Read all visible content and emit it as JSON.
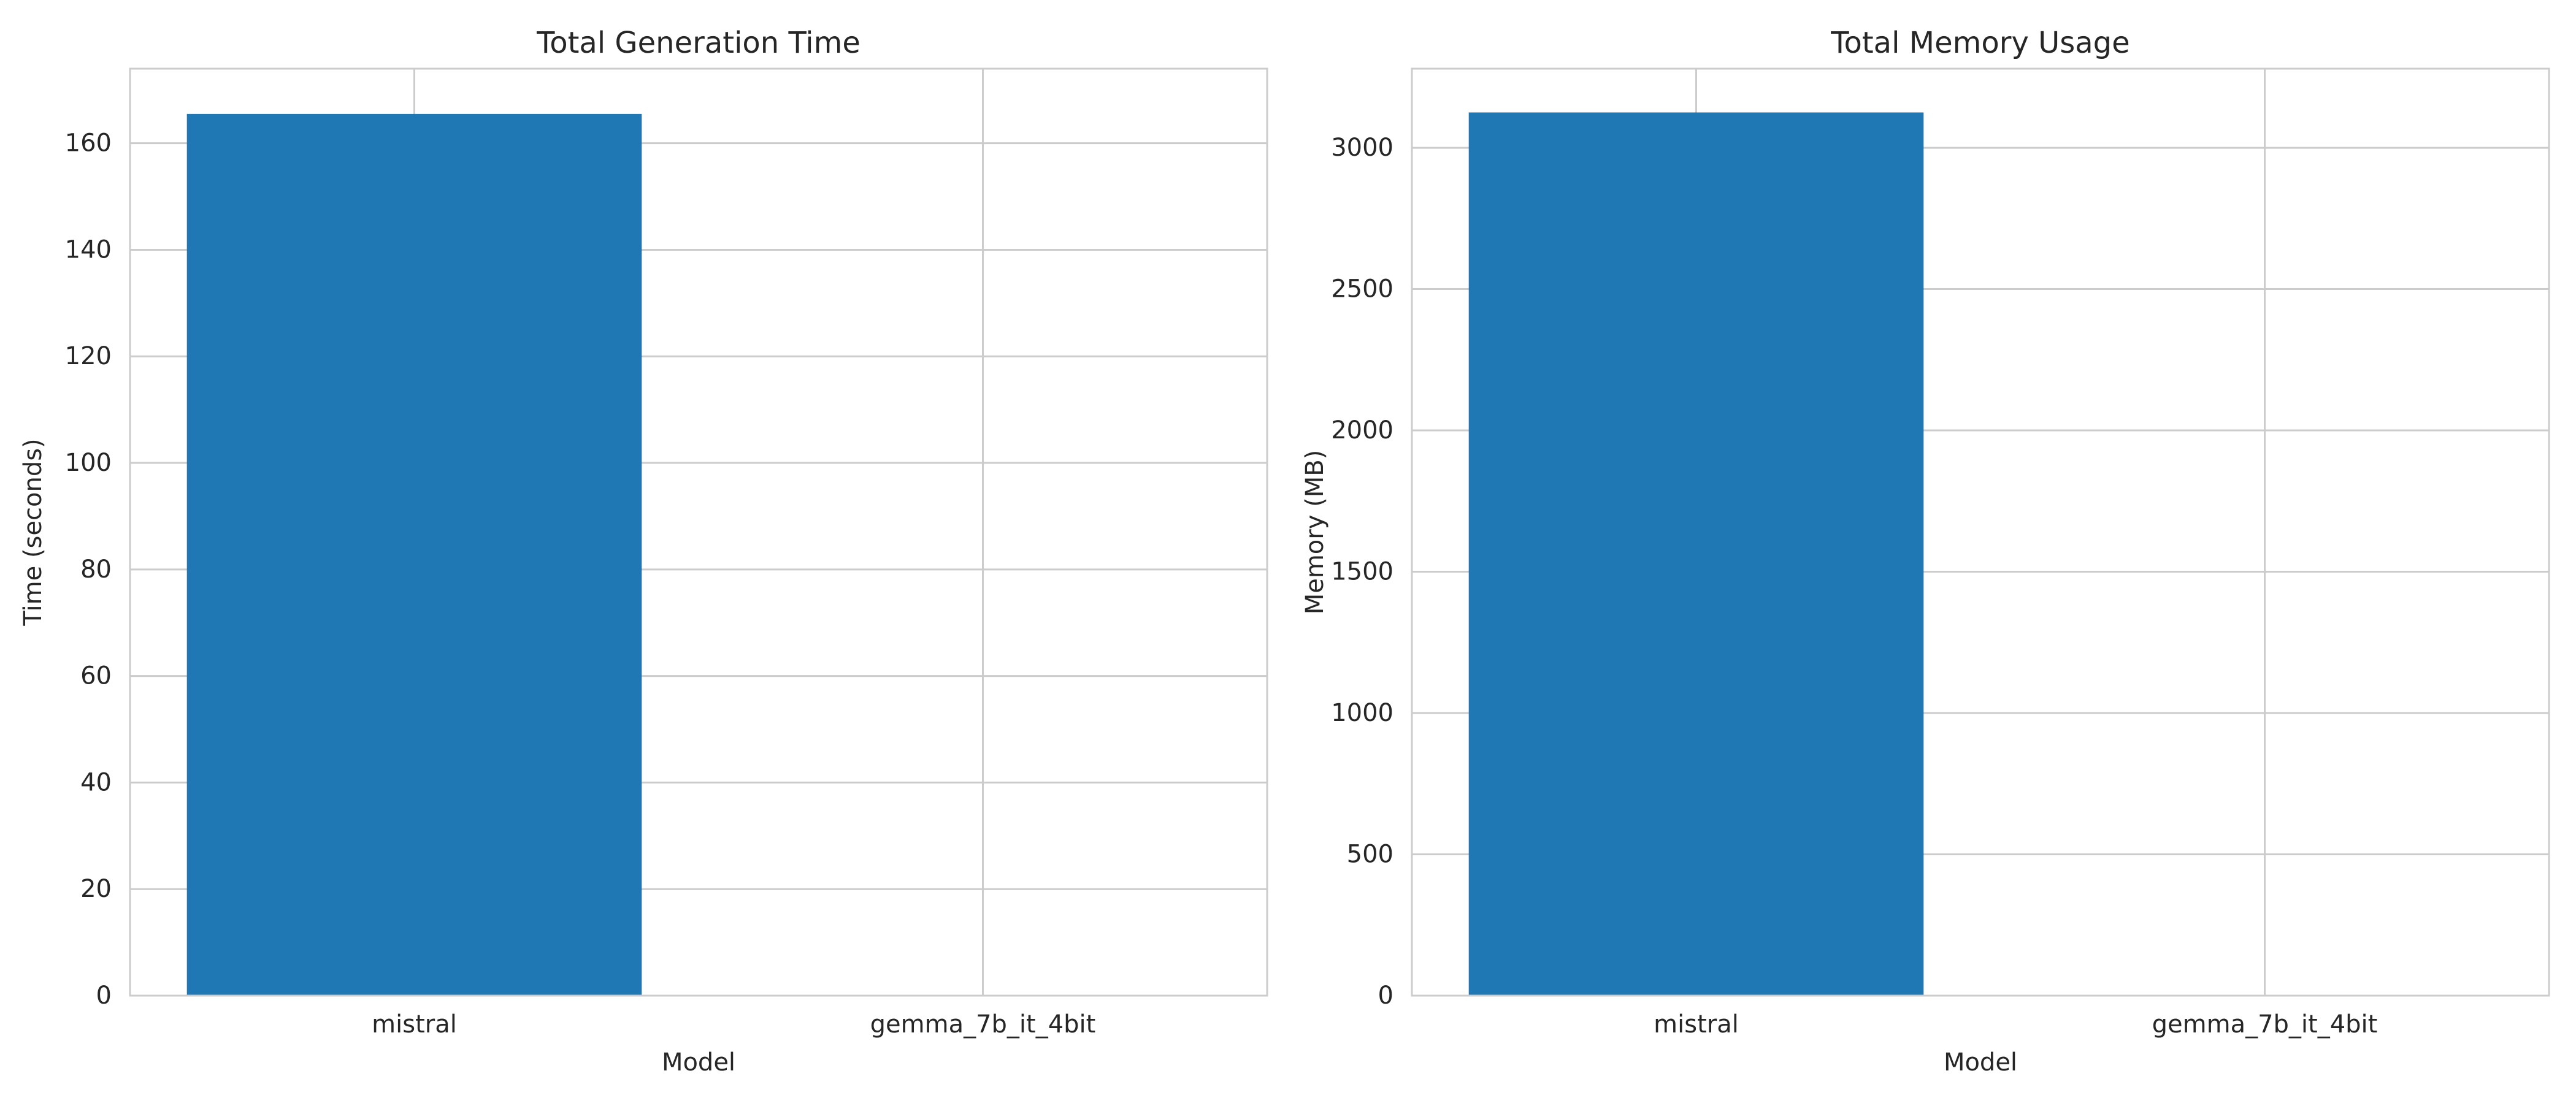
{
  "chart_data": [
    {
      "type": "bar",
      "title": "Total Generation Time",
      "xlabel": "Model",
      "ylabel": "Time (seconds)",
      "categories": [
        "mistral",
        "gemma_7b_it_4bit"
      ],
      "values": [
        165.5,
        0
      ],
      "ylim": [
        0,
        174
      ],
      "yticks": [
        0,
        20,
        40,
        60,
        80,
        100,
        120,
        140,
        160
      ],
      "grid": true,
      "bar_color": "#1f77b4"
    },
    {
      "type": "bar",
      "title": "Total Memory Usage",
      "xlabel": "Model",
      "ylabel": "Memory (MB)",
      "categories": [
        "mistral",
        "gemma_7b_it_4bit"
      ],
      "values": [
        3125,
        0
      ],
      "ylim": [
        0,
        3280
      ],
      "yticks": [
        0,
        500,
        1000,
        1500,
        2000,
        2500,
        3000
      ],
      "grid": true,
      "bar_color": "#1f77b4"
    }
  ]
}
